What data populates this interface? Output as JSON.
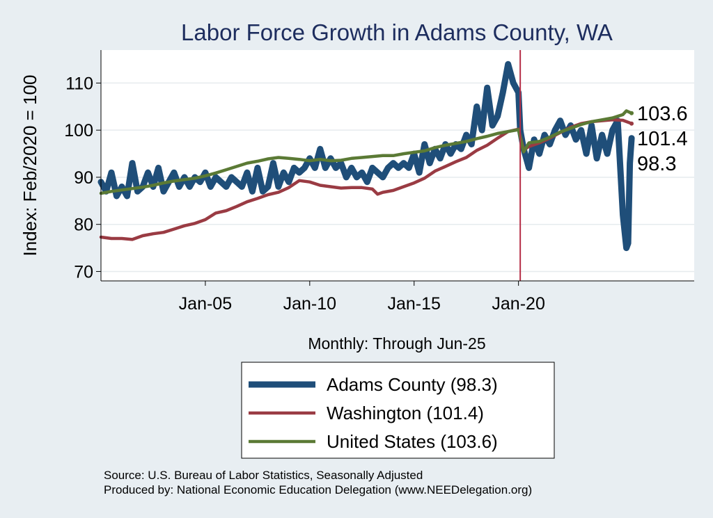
{
  "chart_data": {
    "type": "line",
    "title": "Labor Force Growth in Adams  County, WA",
    "xlabel": "Monthly: Through Jun-25",
    "ylabel": "Index: Feb/2020 = 100",
    "ylim": [
      68,
      117
    ],
    "xlim": [
      "2000-01",
      "2028-06"
    ],
    "yticks": [
      70,
      80,
      90,
      100,
      110
    ],
    "xticks": [
      {
        "label": "Jan-05",
        "date": "2005-01"
      },
      {
        "label": "Jan-10",
        "date": "2010-01"
      },
      {
        "label": "Jan-15",
        "date": "2015-01"
      },
      {
        "label": "Jan-20",
        "date": "2020-01"
      }
    ],
    "reference_line": {
      "date": "2020-02",
      "color": "#b52d46"
    },
    "grid": true,
    "legend_position": "bottom",
    "series": [
      {
        "name": "Adams  County",
        "legend": "Adams  County (98.3)",
        "color": "#1f4e79",
        "end_label": "98.3",
        "points": [
          [
            "2000-01",
            89
          ],
          [
            "2000-04",
            87
          ],
          [
            "2000-07",
            91
          ],
          [
            "2000-10",
            86
          ],
          [
            "2001-01",
            88
          ],
          [
            "2001-04",
            86
          ],
          [
            "2001-07",
            93
          ],
          [
            "2001-10",
            87
          ],
          [
            "2002-01",
            88
          ],
          [
            "2002-04",
            91
          ],
          [
            "2002-07",
            88
          ],
          [
            "2002-10",
            92
          ],
          [
            "2003-01",
            87
          ],
          [
            "2003-04",
            89
          ],
          [
            "2003-07",
            91
          ],
          [
            "2003-10",
            88
          ],
          [
            "2004-01",
            90
          ],
          [
            "2004-04",
            88
          ],
          [
            "2004-07",
            90
          ],
          [
            "2004-10",
            89
          ],
          [
            "2005-01",
            91
          ],
          [
            "2005-04",
            88
          ],
          [
            "2005-07",
            90
          ],
          [
            "2005-10",
            89
          ],
          [
            "2006-01",
            88
          ],
          [
            "2006-04",
            90
          ],
          [
            "2006-07",
            89
          ],
          [
            "2006-10",
            88
          ],
          [
            "2007-01",
            91
          ],
          [
            "2007-04",
            87
          ],
          [
            "2007-07",
            92
          ],
          [
            "2007-10",
            87
          ],
          [
            "2008-01",
            88
          ],
          [
            "2008-04",
            93
          ],
          [
            "2008-07",
            88
          ],
          [
            "2008-10",
            91
          ],
          [
            "2009-01",
            89
          ],
          [
            "2009-04",
            92
          ],
          [
            "2009-07",
            91
          ],
          [
            "2009-10",
            92
          ],
          [
            "2010-01",
            94
          ],
          [
            "2010-04",
            92
          ],
          [
            "2010-07",
            96
          ],
          [
            "2010-10",
            92
          ],
          [
            "2011-01",
            94
          ],
          [
            "2011-04",
            92
          ],
          [
            "2011-07",
            93
          ],
          [
            "2011-10",
            90
          ],
          [
            "2012-01",
            92
          ],
          [
            "2012-04",
            90
          ],
          [
            "2012-07",
            91
          ],
          [
            "2012-10",
            89
          ],
          [
            "2013-01",
            92
          ],
          [
            "2013-04",
            91
          ],
          [
            "2013-07",
            90
          ],
          [
            "2013-10",
            92
          ],
          [
            "2014-01",
            93
          ],
          [
            "2014-04",
            92
          ],
          [
            "2014-07",
            93
          ],
          [
            "2014-10",
            92
          ],
          [
            "2015-01",
            95
          ],
          [
            "2015-04",
            91
          ],
          [
            "2015-07",
            97
          ],
          [
            "2015-10",
            93
          ],
          [
            "2016-01",
            96
          ],
          [
            "2016-04",
            94
          ],
          [
            "2016-07",
            97
          ],
          [
            "2016-10",
            95
          ],
          [
            "2017-01",
            97
          ],
          [
            "2017-04",
            96
          ],
          [
            "2017-07",
            99
          ],
          [
            "2017-10",
            97
          ],
          [
            "2018-01",
            105
          ],
          [
            "2018-04",
            100
          ],
          [
            "2018-07",
            109
          ],
          [
            "2018-10",
            101
          ],
          [
            "2019-01",
            103
          ],
          [
            "2019-04",
            108
          ],
          [
            "2019-07",
            114
          ],
          [
            "2019-10",
            110
          ],
          [
            "2020-01",
            108
          ],
          [
            "2020-02",
            100
          ],
          [
            "2020-04",
            96
          ],
          [
            "2020-07",
            92
          ],
          [
            "2020-10",
            98
          ],
          [
            "2021-01",
            95
          ],
          [
            "2021-04",
            99
          ],
          [
            "2021-07",
            97
          ],
          [
            "2021-10",
            100
          ],
          [
            "2022-01",
            102
          ],
          [
            "2022-04",
            99
          ],
          [
            "2022-07",
            101
          ],
          [
            "2022-10",
            98
          ],
          [
            "2023-01",
            100
          ],
          [
            "2023-04",
            95
          ],
          [
            "2023-07",
            101
          ],
          [
            "2023-10",
            94
          ],
          [
            "2024-01",
            99
          ],
          [
            "2024-04",
            95
          ],
          [
            "2024-07",
            100
          ],
          [
            "2024-10",
            102
          ],
          [
            "2025-01",
            82
          ],
          [
            "2025-03",
            75
          ],
          [
            "2025-04",
            76
          ],
          [
            "2025-05",
            93
          ],
          [
            "2025-06",
            98.3
          ]
        ]
      },
      {
        "name": "Washington",
        "legend": "Washington (101.4)",
        "color": "#9a3b43",
        "end_label": "101.4",
        "points": [
          [
            "2000-01",
            77.3
          ],
          [
            "2000-07",
            77
          ],
          [
            "2001-01",
            77
          ],
          [
            "2001-07",
            76.8
          ],
          [
            "2002-01",
            77.6
          ],
          [
            "2002-07",
            78
          ],
          [
            "2003-01",
            78.3
          ],
          [
            "2003-07",
            79
          ],
          [
            "2004-01",
            79.7
          ],
          [
            "2004-07",
            80.2
          ],
          [
            "2005-01",
            81
          ],
          [
            "2005-07",
            82.4
          ],
          [
            "2006-01",
            82.9
          ],
          [
            "2006-07",
            83.8
          ],
          [
            "2007-01",
            84.8
          ],
          [
            "2007-07",
            85.5
          ],
          [
            "2008-01",
            86.3
          ],
          [
            "2008-07",
            86.8
          ],
          [
            "2009-01",
            87.8
          ],
          [
            "2009-07",
            89.3
          ],
          [
            "2010-01",
            89
          ],
          [
            "2010-07",
            88.3
          ],
          [
            "2011-01",
            88
          ],
          [
            "2011-07",
            87.7
          ],
          [
            "2012-01",
            87.8
          ],
          [
            "2012-07",
            87.8
          ],
          [
            "2013-01",
            87.5
          ],
          [
            "2013-04",
            86.4
          ],
          [
            "2013-07",
            86.8
          ],
          [
            "2014-01",
            87.2
          ],
          [
            "2014-07",
            88
          ],
          [
            "2015-01",
            88.8
          ],
          [
            "2015-07",
            89.8
          ],
          [
            "2016-01",
            91.3
          ],
          [
            "2016-07",
            92.3
          ],
          [
            "2017-01",
            93.3
          ],
          [
            "2017-07",
            94.2
          ],
          [
            "2018-01",
            95.7
          ],
          [
            "2018-07",
            96.8
          ],
          [
            "2019-01",
            98.3
          ],
          [
            "2019-07",
            99.7
          ],
          [
            "2020-01",
            100.2
          ],
          [
            "2020-04",
            95.8
          ],
          [
            "2020-07",
            96.5
          ],
          [
            "2021-01",
            97.3
          ],
          [
            "2021-07",
            98.3
          ],
          [
            "2022-01",
            99.5
          ],
          [
            "2022-07",
            100.6
          ],
          [
            "2023-01",
            101.4
          ],
          [
            "2023-07",
            101.8
          ],
          [
            "2024-01",
            102
          ],
          [
            "2024-07",
            102.2
          ],
          [
            "2025-01",
            102.1
          ],
          [
            "2025-06",
            101.4
          ]
        ]
      },
      {
        "name": "United States",
        "legend": "United States (103.6)",
        "color": "#5b7a35",
        "end_label": "103.6",
        "points": [
          [
            "2000-01",
            86.6
          ],
          [
            "2000-07",
            87
          ],
          [
            "2001-01",
            87.3
          ],
          [
            "2001-07",
            87.6
          ],
          [
            "2002-01",
            87.9
          ],
          [
            "2002-07",
            88.3
          ],
          [
            "2003-01",
            88.8
          ],
          [
            "2003-07",
            89.2
          ],
          [
            "2004-01",
            89.5
          ],
          [
            "2004-07",
            89.8
          ],
          [
            "2005-01",
            90.3
          ],
          [
            "2005-07",
            90.9
          ],
          [
            "2006-01",
            91.6
          ],
          [
            "2006-07",
            92.3
          ],
          [
            "2007-01",
            93
          ],
          [
            "2007-07",
            93.4
          ],
          [
            "2008-01",
            93.9
          ],
          [
            "2008-07",
            94.2
          ],
          [
            "2009-01",
            94
          ],
          [
            "2009-07",
            93.8
          ],
          [
            "2010-01",
            93.5
          ],
          [
            "2010-07",
            93.8
          ],
          [
            "2011-01",
            93.5
          ],
          [
            "2011-07",
            93.6
          ],
          [
            "2012-01",
            94
          ],
          [
            "2012-07",
            94.2
          ],
          [
            "2013-01",
            94.4
          ],
          [
            "2013-07",
            94.6
          ],
          [
            "2014-01",
            94.6
          ],
          [
            "2014-07",
            95
          ],
          [
            "2015-01",
            95.3
          ],
          [
            "2015-07",
            95.6
          ],
          [
            "2016-01",
            96.3
          ],
          [
            "2016-07",
            96.8
          ],
          [
            "2017-01",
            97.2
          ],
          [
            "2017-07",
            97.6
          ],
          [
            "2018-01",
            98.2
          ],
          [
            "2018-07",
            98.7
          ],
          [
            "2019-01",
            99.3
          ],
          [
            "2019-07",
            99.7
          ],
          [
            "2020-01",
            100.1
          ],
          [
            "2020-04",
            95.4
          ],
          [
            "2020-07",
            97.3
          ],
          [
            "2021-01",
            97.6
          ],
          [
            "2021-07",
            98.5
          ],
          [
            "2022-01",
            99.6
          ],
          [
            "2022-07",
            100.4
          ],
          [
            "2023-01",
            101.2
          ],
          [
            "2023-07",
            101.8
          ],
          [
            "2024-01",
            102.2
          ],
          [
            "2024-07",
            102.6
          ],
          [
            "2025-01",
            103.3
          ],
          [
            "2025-03",
            104.1
          ],
          [
            "2025-06",
            103.6
          ]
        ]
      }
    ]
  },
  "source_line": "Source: U.S. Bureau of Labor Statistics, Seasonally Adjusted",
  "produced_line": "Produced by: National Economic Education Delegation (www.NEEDelegation.org)"
}
